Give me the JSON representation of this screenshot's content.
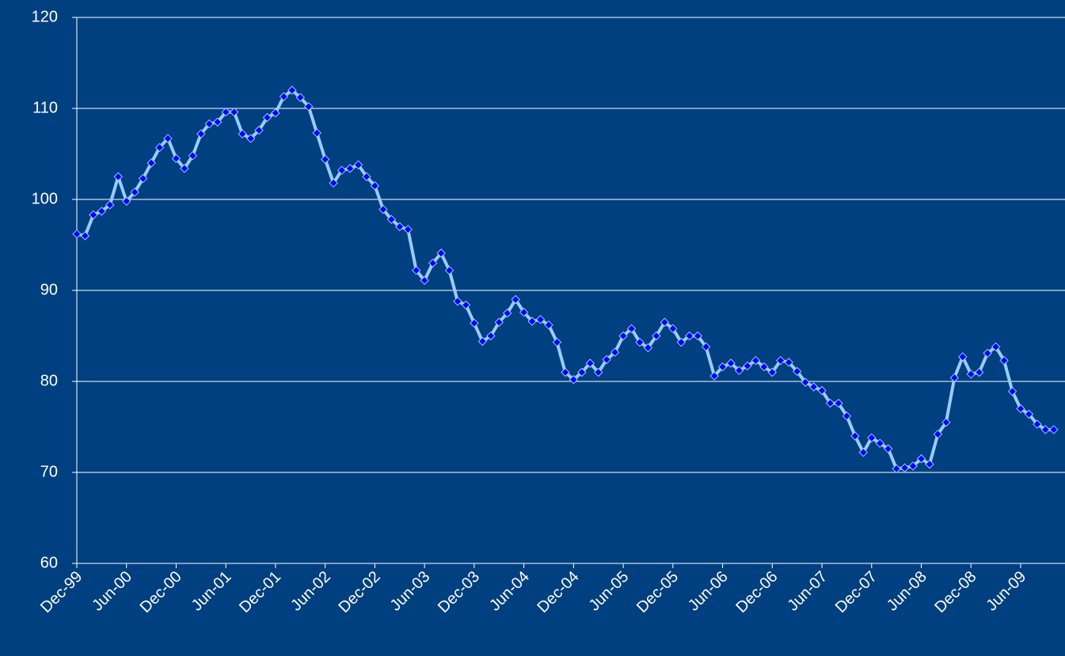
{
  "chart_data": {
    "type": "line",
    "categories": [
      "Dec-99",
      null,
      null,
      null,
      null,
      null,
      "Jun-00",
      null,
      null,
      null,
      null,
      null,
      "Dec-00",
      null,
      null,
      null,
      null,
      null,
      "Jun-01",
      null,
      null,
      null,
      null,
      null,
      "Dec-01",
      null,
      null,
      null,
      null,
      null,
      "Jun-02",
      null,
      null,
      null,
      null,
      null,
      "Dec-02",
      null,
      null,
      null,
      null,
      null,
      "Jun-03",
      null,
      null,
      null,
      null,
      null,
      "Dec-03",
      null,
      null,
      null,
      null,
      null,
      "Jun-04",
      null,
      null,
      null,
      null,
      null,
      "Dec-04",
      null,
      null,
      null,
      null,
      null,
      "Jun-05",
      null,
      null,
      null,
      null,
      null,
      "Dec-05",
      null,
      null,
      null,
      null,
      null,
      "Jun-06",
      null,
      null,
      null,
      null,
      null,
      "Dec-06",
      null,
      null,
      null,
      null,
      null,
      "Jun-07",
      null,
      null,
      null,
      null,
      null,
      "Dec-07",
      null,
      null,
      null,
      null,
      null,
      "Jun-08",
      null,
      null,
      null,
      null,
      null,
      "Dec-08",
      null,
      null,
      null,
      null,
      null,
      "Jun-09",
      null,
      null,
      null,
      null
    ],
    "values": [
      96.2,
      96.0,
      98.3,
      98.7,
      99.4,
      102.5,
      99.8,
      100.8,
      102.3,
      104.0,
      105.7,
      106.7,
      104.5,
      103.4,
      104.8,
      107.2,
      108.3,
      108.5,
      109.6,
      109.6,
      107.2,
      106.7,
      107.6,
      109.0,
      109.5,
      111.3,
      112.0,
      111.2,
      110.2,
      107.3,
      104.4,
      101.8,
      103.2,
      103.4,
      103.8,
      102.5,
      101.5,
      98.9,
      97.8,
      97.0,
      96.7,
      92.2,
      91.1,
      93.0,
      94.1,
      92.2,
      88.8,
      88.4,
      86.4,
      84.4,
      85.0,
      86.5,
      87.5,
      89.0,
      87.6,
      86.6,
      86.8,
      86.2,
      84.3,
      81.0,
      80.2,
      81.0,
      82.0,
      81.0,
      82.4,
      83.2,
      85.0,
      85.8,
      84.3,
      83.7,
      85.0,
      86.5,
      85.8,
      84.3,
      85.0,
      85.0,
      83.8,
      80.6,
      81.6,
      82.0,
      81.2,
      81.7,
      82.3,
      81.6,
      81.0,
      82.3,
      82.1,
      81.1,
      79.9,
      79.4,
      79.0,
      77.6,
      77.6,
      76.2,
      74.0,
      72.2,
      73.8,
      73.2,
      72.6,
      70.4,
      70.5,
      70.7,
      71.5,
      70.9,
      74.2,
      75.5,
      80.4,
      82.7,
      80.8,
      81.0,
      83.1,
      83.8,
      82.3,
      78.9,
      77.0,
      76.4,
      75.3,
      74.7,
      74.7
    ],
    "color": "#99ccff",
    "marker_color": "#0000ff",
    "ylim": [
      60,
      120
    ],
    "yticks": [
      60,
      70,
      80,
      90,
      100,
      110,
      120
    ],
    "grid": true
  }
}
